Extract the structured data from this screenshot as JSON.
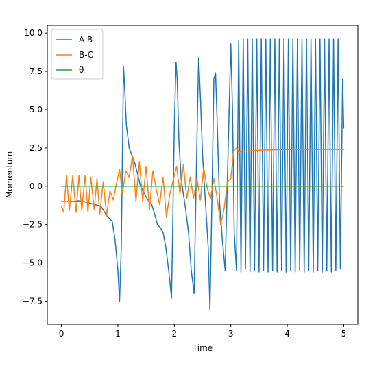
{
  "chart_data": {
    "type": "line",
    "xlabel": "Time",
    "ylabel": "Momentum",
    "xlim": [
      -0.25,
      5.25
    ],
    "ylim": [
      -9.0,
      10.5
    ],
    "xticks": [
      0,
      1,
      2,
      3,
      4,
      5
    ],
    "xtick_labels": [
      "0",
      "1",
      "2",
      "3",
      "4",
      "5"
    ],
    "yticks": [
      -7.5,
      -5.0,
      -2.5,
      0.0,
      2.5,
      5.0,
      7.5,
      10.0
    ],
    "ytick_labels": [
      "−7.5",
      "−5.0",
      "−2.5",
      "0.0",
      "2.5",
      "5.0",
      "7.5",
      "10.0"
    ],
    "grid": false,
    "legend_position": "upper-left",
    "series": [
      {
        "name": "A-B",
        "color": "#1f77b4",
        "x": [
          0,
          0.1,
          0.2,
          0.3,
          0.4,
          0.5,
          0.6,
          0.7,
          0.75,
          0.8,
          0.85,
          0.9,
          0.95,
          1.0,
          1.03,
          1.06,
          1.08,
          1.1,
          1.12,
          1.15,
          1.2,
          1.25,
          1.3,
          1.35,
          1.4,
          1.45,
          1.5,
          1.55,
          1.6,
          1.65,
          1.7,
          1.75,
          1.8,
          1.85,
          1.9,
          1.95,
          2.0,
          2.03,
          2.05,
          2.08,
          2.12,
          2.16,
          2.2,
          2.25,
          2.3,
          2.35,
          2.4,
          2.43,
          2.46,
          2.5,
          2.55,
          2.6,
          2.63,
          2.66,
          2.7,
          2.73,
          2.76,
          2.8,
          2.85,
          2.9,
          2.95,
          3.0,
          3.03,
          3.06,
          3.1,
          3.14,
          3.18,
          3.22,
          3.26,
          3.3,
          3.34,
          3.38,
          3.42,
          3.46,
          3.5,
          3.54,
          3.58,
          3.62,
          3.66,
          3.7,
          3.74,
          3.78,
          3.82,
          3.86,
          3.9,
          3.94,
          3.98,
          4.02,
          4.06,
          4.1,
          4.14,
          4.18,
          4.22,
          4.26,
          4.3,
          4.34,
          4.38,
          4.42,
          4.46,
          4.5,
          4.54,
          4.58,
          4.62,
          4.66,
          4.7,
          4.74,
          4.78,
          4.82,
          4.86,
          4.9,
          4.94,
          4.98,
          5.0
        ],
        "y": [
          -1.0,
          -1.0,
          -1.0,
          -0.95,
          -1.0,
          -1.1,
          -1.2,
          -1.3,
          -1.6,
          -1.9,
          -2.1,
          -2.3,
          -3.5,
          -5.5,
          -7.5,
          -4.0,
          2.0,
          7.8,
          6.5,
          4.0,
          2.5,
          2.0,
          1.5,
          0.8,
          0.0,
          -0.3,
          -0.7,
          -1.0,
          -1.2,
          -1.8,
          -2.5,
          -2.7,
          -3.0,
          -4.0,
          -5.5,
          -7.3,
          4.0,
          8.1,
          7.0,
          3.0,
          0.5,
          -0.5,
          -1.5,
          -3.0,
          -5.5,
          -7.0,
          3.0,
          8.4,
          6.0,
          2.0,
          -1.0,
          -4.0,
          -8.1,
          -2.0,
          7.0,
          7.4,
          4.0,
          -1.0,
          -3.5,
          -5.5,
          2.0,
          9.3,
          5.0,
          -3.0,
          -5.5,
          9.5,
          -5.6,
          9.6,
          -5.4,
          9.6,
          -5.6,
          9.6,
          -5.5,
          9.6,
          -5.6,
          9.6,
          -5.5,
          9.6,
          -5.6,
          9.6,
          -5.5,
          9.6,
          -5.6,
          9.6,
          -5.5,
          9.6,
          -5.6,
          9.6,
          -5.5,
          9.6,
          -5.6,
          9.6,
          -5.5,
          9.6,
          -5.6,
          9.6,
          -5.5,
          9.6,
          -5.6,
          9.6,
          -5.5,
          9.6,
          -5.6,
          9.6,
          -5.5,
          9.6,
          -5.6,
          9.6,
          -5.5,
          9.6,
          -5.4,
          7.0,
          3.8
        ]
      },
      {
        "name": "B-C",
        "color": "#ff7f0e",
        "x": [
          0,
          0.04,
          0.09,
          0.14,
          0.2,
          0.26,
          0.31,
          0.36,
          0.42,
          0.47,
          0.52,
          0.58,
          0.63,
          0.68,
          0.74,
          0.8,
          0.86,
          0.92,
          0.97,
          1.03,
          1.08,
          1.14,
          1.2,
          1.26,
          1.32,
          1.38,
          1.44,
          1.5,
          1.56,
          1.62,
          1.68,
          1.74,
          1.8,
          1.86,
          1.92,
          1.98,
          2.04,
          2.1,
          2.16,
          2.22,
          2.28,
          2.34,
          2.4,
          2.46,
          2.52,
          2.58,
          2.64,
          2.7,
          2.76,
          2.82,
          2.88,
          2.94,
          3.0,
          3.05,
          3.1,
          3.15,
          3.2,
          3.3,
          3.5,
          3.8,
          4.2,
          4.6,
          5.0
        ],
        "y": [
          -1.3,
          -1.7,
          0.7,
          -1.6,
          0.7,
          -1.7,
          0.7,
          -1.6,
          0.7,
          -1.7,
          0.6,
          -1.5,
          0.5,
          -1.8,
          0.3,
          -1.9,
          -0.3,
          -0.9,
          0.1,
          1.1,
          -0.5,
          1.0,
          0.6,
          2.0,
          -1.0,
          1.6,
          -1.0,
          1.3,
          -1.5,
          1.0,
          -0.2,
          -1.2,
          0.6,
          -2.0,
          -0.5,
          0.4,
          1.3,
          -0.5,
          1.4,
          -0.8,
          0.6,
          -0.8,
          0.5,
          -0.9,
          1.2,
          -0.1,
          -0.8,
          0.5,
          -0.8,
          -2.5,
          -1.5,
          0.3,
          0.5,
          2.3,
          2.5,
          2.2,
          2.3,
          2.3,
          2.35,
          2.38,
          2.4,
          2.4,
          2.4
        ]
      },
      {
        "name": "θ",
        "color": "#2ca02c",
        "x": [
          0,
          5
        ],
        "y": [
          0.0,
          0.0
        ]
      }
    ]
  }
}
